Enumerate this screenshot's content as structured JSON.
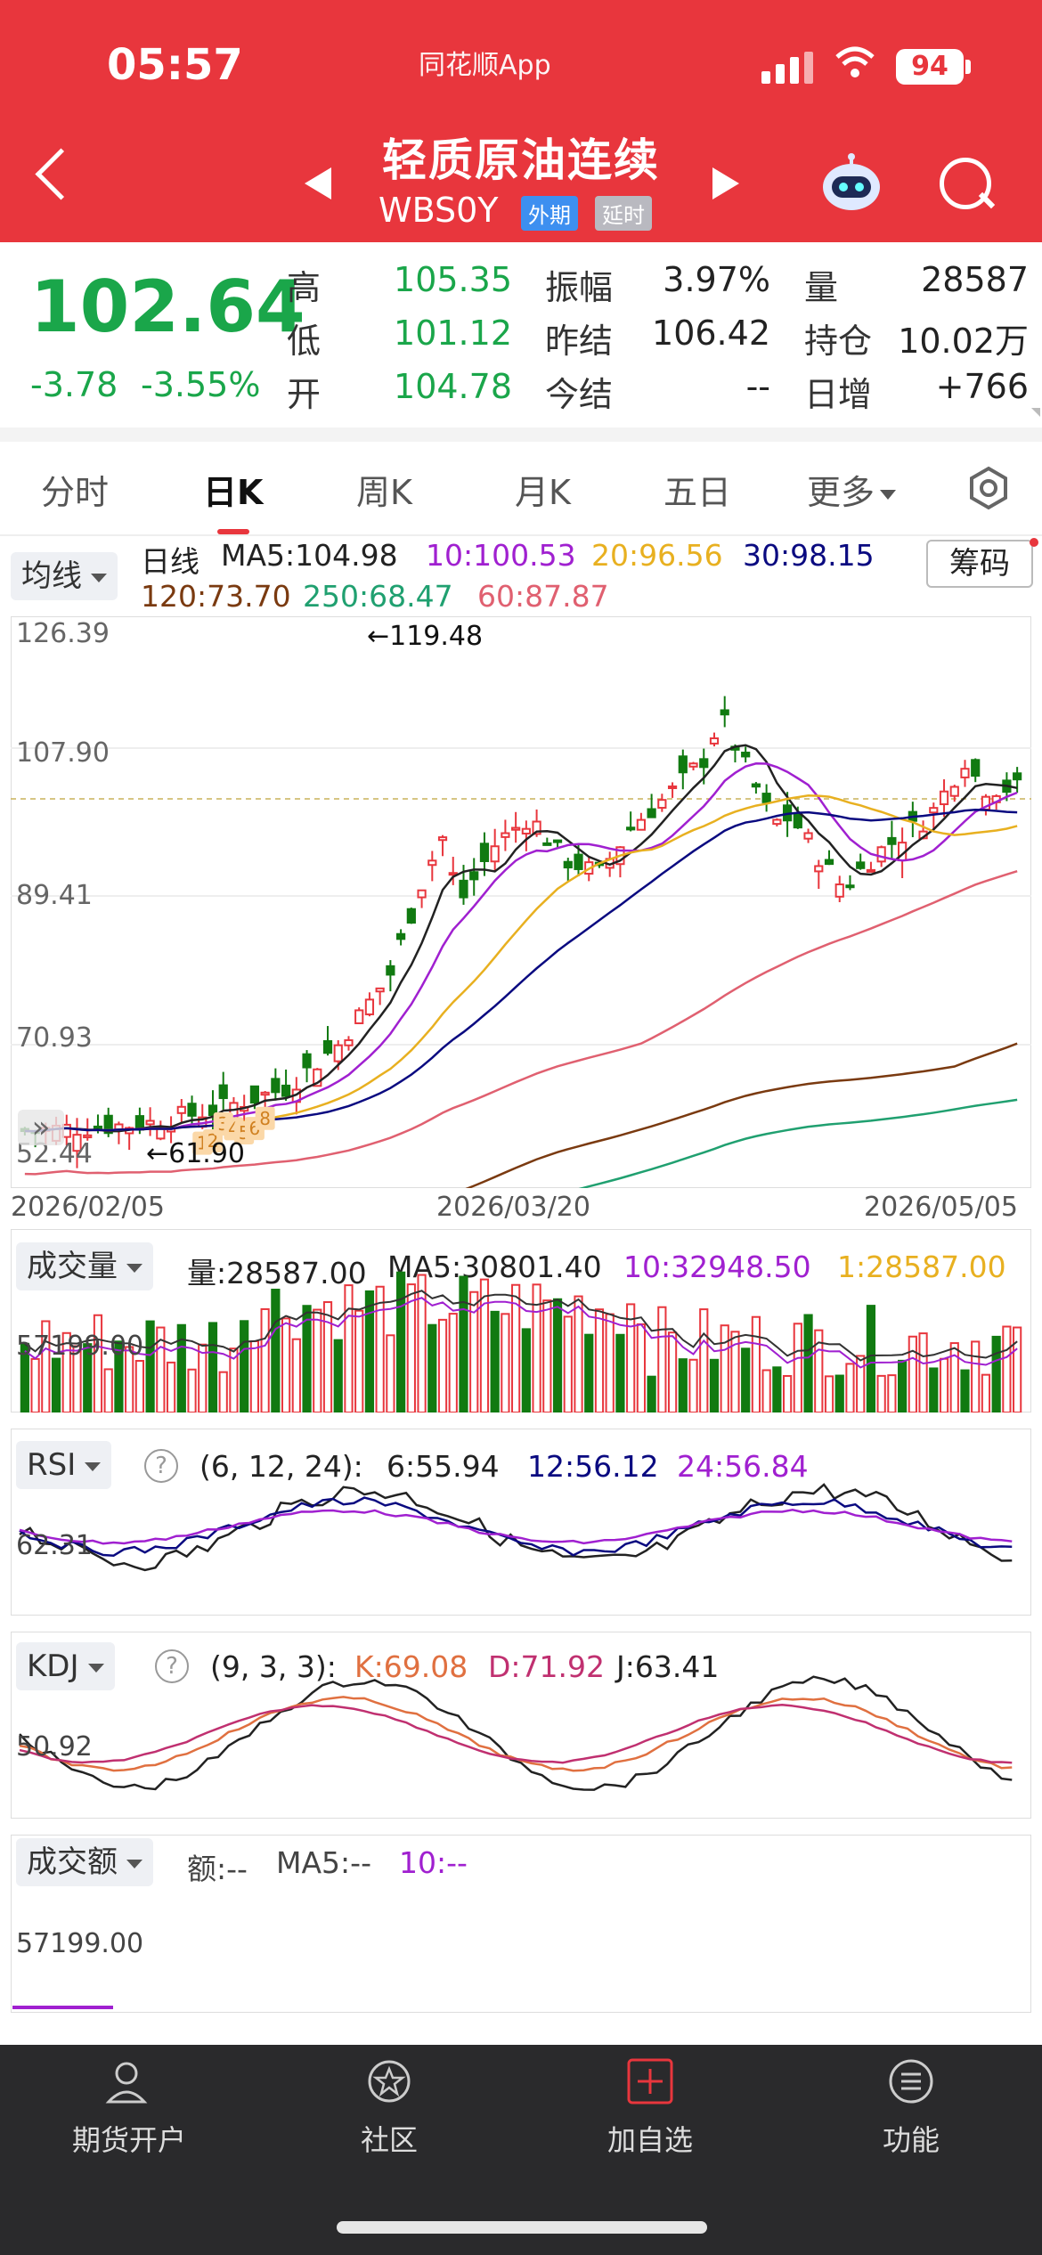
{
  "status_bar": {
    "time": "05:57",
    "app_name": "同花顺App",
    "battery": "94"
  },
  "header": {
    "title": "轻质原油连续",
    "code": "WBS0Y",
    "tag_market": "外期",
    "tag_delay": "延时"
  },
  "quote": {
    "price": "102.64",
    "change": "-3.78",
    "change_pct": "-3.55%",
    "high_label": "高",
    "high": "105.35",
    "low_label": "低",
    "low": "101.12",
    "open_label": "开",
    "open": "104.78",
    "amp_label": "振幅",
    "amp": "3.97%",
    "prev_settle_label": "昨结",
    "prev_settle": "106.42",
    "settle_label": "今结",
    "settle": "--",
    "vol_label": "量",
    "vol": "28587",
    "oi_label": "持仓",
    "oi": "10.02万",
    "oi_inc_label": "日增",
    "oi_inc": "+766"
  },
  "tabs": [
    "分时",
    "日K",
    "周K",
    "月K",
    "五日",
    "更多"
  ],
  "ma_legend": {
    "dropdown": "均线",
    "period": "日线",
    "ma5": "MA5:104.98",
    "ma10": "10:100.53",
    "ma20": "20:96.56",
    "ma30": "30:98.15",
    "ma120": "120:73.70",
    "ma250": "250:68.47",
    "ma60": "60:87.87",
    "chip_button": "筹码"
  },
  "colors": {
    "up": "#e8363d",
    "down": "#117a11",
    "ma5": "#222222",
    "ma10": "#a020d0",
    "ma20": "#e8b020",
    "ma30": "#0a0a80",
    "ma60": "#e06070",
    "ma120": "#7a3a10",
    "ma250": "#20a070"
  },
  "kline": {
    "y_ticks": [
      "126.39",
      "107.90",
      "89.41",
      "70.93",
      "52.44"
    ],
    "x_labels": [
      "2026/02/05",
      "2026/03/20",
      "2026/05/05"
    ],
    "high_note": "←119.48",
    "low_note": "←61.90",
    "signal_marks": [
      "1",
      "2",
      "3",
      "4",
      "5",
      "6",
      "8",
      "9"
    ]
  },
  "volume": {
    "dropdown": "成交量",
    "vol": "量:28587.00",
    "ma5": "MA5:30801.40",
    "ma10": "10:32948.50",
    "ma1": "1:28587.00",
    "tick": "57199.00"
  },
  "rsi": {
    "dropdown": "RSI",
    "params": "(6, 12, 24):",
    "r6": "6:55.94",
    "r12": "12:56.12",
    "r24": "24:56.84",
    "tick": "62.31"
  },
  "kdj": {
    "dropdown": "KDJ",
    "params": "(9, 3, 3):",
    "k": "K:69.08",
    "d": "D:71.92",
    "j": "J:63.41",
    "tick": "50.92"
  },
  "amount": {
    "dropdown": "成交额",
    "amt": "额:--",
    "ma5": "MA5:--",
    "ma10": "10:--",
    "tick": "57199.00"
  },
  "bottom_nav": [
    "期货开户",
    "社区",
    "加自选",
    "功能"
  ]
}
